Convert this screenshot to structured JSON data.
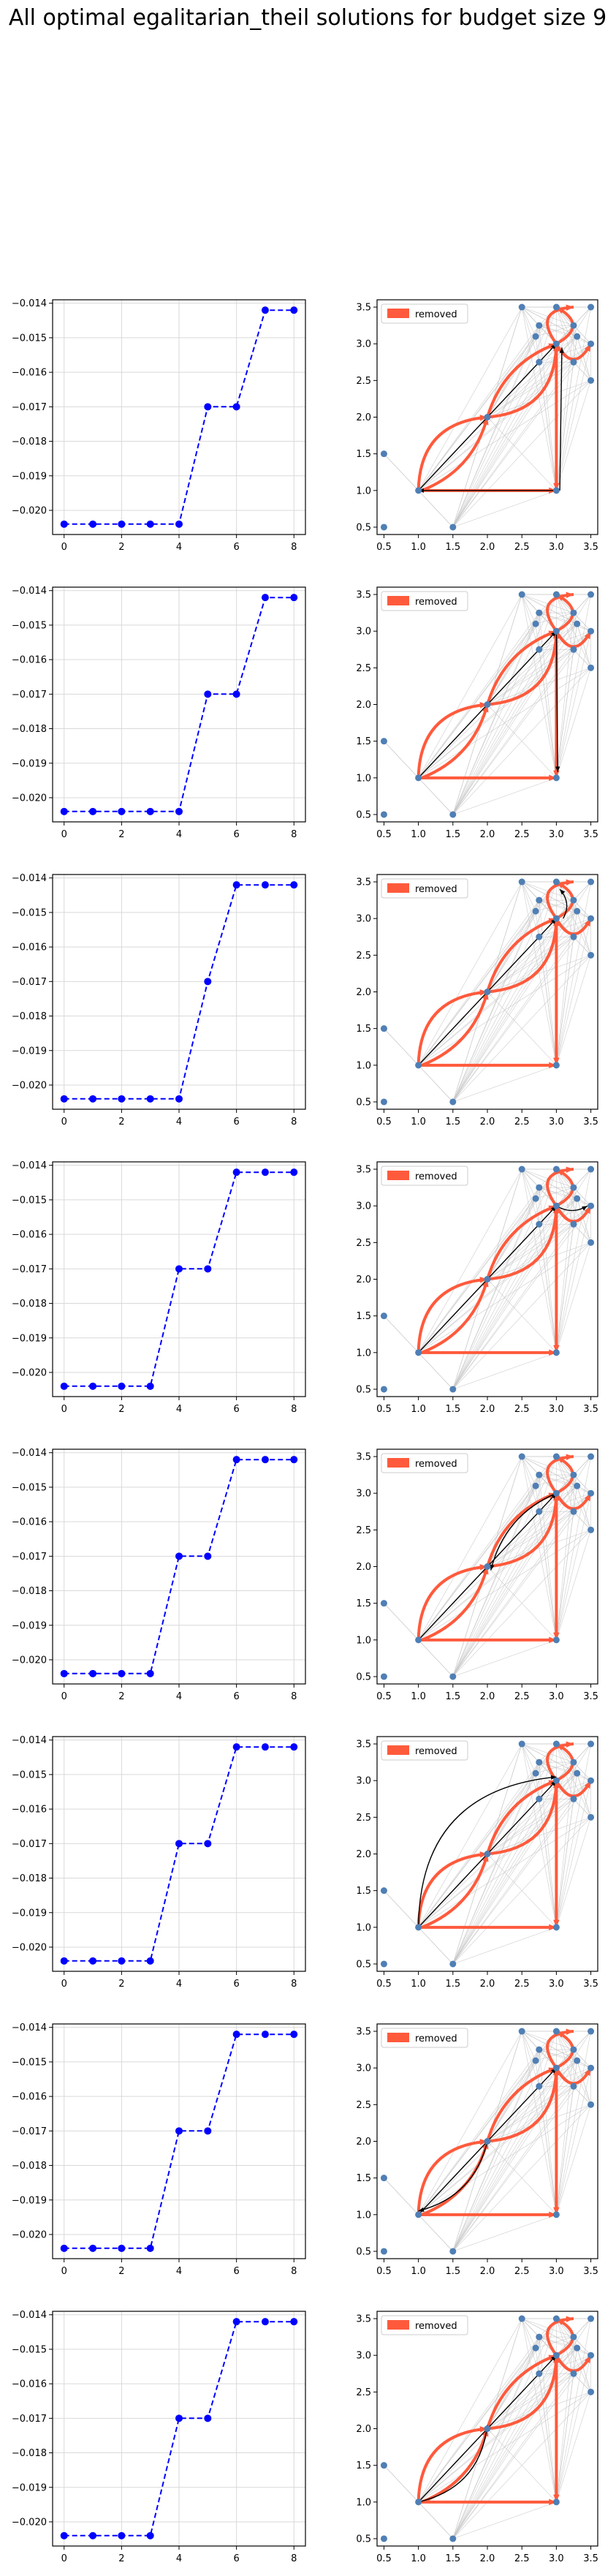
{
  "figure": {
    "title": "All optimal egalitarian_theil solutions for budget size 9"
  },
  "colors": {
    "line_series": "#0000ff",
    "removed_edge": "#ff5a3c",
    "node": "#4f7fb5",
    "background_edge": "#c8c8c8",
    "chosen_edge": "#000000",
    "grid": "#d9d9d9"
  },
  "chart_data": [
    {
      "type": "line",
      "panel": "left",
      "row": 1,
      "x": [
        0,
        1,
        2,
        3,
        4,
        5,
        6,
        7,
        8
      ],
      "values": [
        -0.0204,
        -0.0204,
        -0.0204,
        -0.0204,
        -0.0204,
        -0.017,
        -0.017,
        -0.0142,
        -0.0142
      ],
      "xticks": [
        0,
        2,
        4,
        6,
        8
      ],
      "yticks": [
        -0.02,
        -0.019,
        -0.018,
        -0.017,
        -0.016,
        -0.015,
        -0.014
      ],
      "xlim": [
        -0.4,
        8.4
      ],
      "ylim": [
        -0.0207,
        -0.0139
      ],
      "grid": true,
      "style": "dashed, circle markers"
    },
    {
      "type": "network",
      "panel": "right",
      "row": 1,
      "legend": {
        "label": "removed",
        "loc": "upper left"
      },
      "xticks": [
        0.5,
        1.0,
        1.5,
        2.0,
        2.5,
        3.0,
        3.5
      ],
      "yticks": [
        0.5,
        1.0,
        1.5,
        2.0,
        2.5,
        3.0,
        3.5
      ],
      "xlim": [
        0.4,
        3.6
      ],
      "ylim": [
        0.4,
        3.6
      ],
      "black_edges": [
        [
          1,
          1,
          3,
          3,
          0.0
        ],
        [
          3.05,
          1.0,
          3.08,
          2.95,
          0.0
        ],
        [
          3.0,
          1.0,
          1.0,
          1.0,
          0.0
        ]
      ]
    },
    {
      "type": "line",
      "panel": "left",
      "row": 2,
      "x": [
        0,
        1,
        2,
        3,
        4,
        5,
        6,
        7,
        8
      ],
      "values": [
        -0.0204,
        -0.0204,
        -0.0204,
        -0.0204,
        -0.0204,
        -0.017,
        -0.017,
        -0.0142,
        -0.0142
      ],
      "xticks": [
        0,
        2,
        4,
        6,
        8
      ],
      "yticks": [
        -0.02,
        -0.019,
        -0.018,
        -0.017,
        -0.016,
        -0.015,
        -0.014
      ],
      "xlim": [
        -0.4,
        8.4
      ],
      "ylim": [
        -0.0207,
        -0.0139
      ],
      "grid": true,
      "style": "dashed, circle markers"
    },
    {
      "type": "network",
      "panel": "right",
      "row": 2,
      "legend": {
        "label": "removed",
        "loc": "upper left"
      },
      "xticks": [
        0.5,
        1.0,
        1.5,
        2.0,
        2.5,
        3.0,
        3.5
      ],
      "yticks": [
        0.5,
        1.0,
        1.5,
        2.0,
        2.5,
        3.0,
        3.5
      ],
      "xlim": [
        0.4,
        3.6
      ],
      "ylim": [
        0.4,
        3.6
      ],
      "black_edges": [
        [
          1,
          1,
          3,
          3,
          0.0
        ],
        [
          3.0,
          3.0,
          3.02,
          1.08,
          0.0
        ]
      ]
    },
    {
      "type": "line",
      "panel": "left",
      "row": 3,
      "x": [
        0,
        1,
        2,
        3,
        4,
        5,
        6,
        7,
        8
      ],
      "values": [
        -0.0204,
        -0.0204,
        -0.0204,
        -0.0204,
        -0.0204,
        -0.017,
        -0.0142,
        -0.0142,
        -0.0142
      ],
      "xticks": [
        0,
        2,
        4,
        6,
        8
      ],
      "yticks": [
        -0.02,
        -0.019,
        -0.018,
        -0.017,
        -0.016,
        -0.015,
        -0.014
      ],
      "xlim": [
        -0.4,
        8.4
      ],
      "ylim": [
        -0.0207,
        -0.0139
      ],
      "grid": true,
      "style": "dashed, circle markers"
    },
    {
      "type": "network",
      "panel": "right",
      "row": 3,
      "legend": {
        "label": "removed",
        "loc": "upper left"
      },
      "xticks": [
        0.5,
        1.0,
        1.5,
        2.0,
        2.5,
        3.0,
        3.5
      ],
      "yticks": [
        0.5,
        1.0,
        1.5,
        2.0,
        2.5,
        3.0,
        3.5
      ],
      "xlim": [
        0.4,
        3.6
      ],
      "ylim": [
        0.4,
        3.6
      ],
      "black_edges": [
        [
          1,
          1,
          3,
          3,
          0.0
        ],
        [
          3.1,
          3.0,
          3.05,
          3.4,
          0.35
        ]
      ]
    },
    {
      "type": "line",
      "panel": "left",
      "row": 4,
      "x": [
        0,
        1,
        2,
        3,
        4,
        5,
        6,
        7,
        8
      ],
      "values": [
        -0.0204,
        -0.0204,
        -0.0204,
        -0.0204,
        -0.017,
        -0.017,
        -0.0142,
        -0.0142,
        -0.0142
      ],
      "xticks": [
        0,
        2,
        4,
        6,
        8
      ],
      "yticks": [
        -0.02,
        -0.019,
        -0.018,
        -0.017,
        -0.016,
        -0.015,
        -0.014
      ],
      "xlim": [
        -0.4,
        8.4
      ],
      "ylim": [
        -0.0207,
        -0.0139
      ],
      "grid": true,
      "style": "dashed, circle markers"
    },
    {
      "type": "network",
      "panel": "right",
      "row": 4,
      "legend": {
        "label": "removed",
        "loc": "upper left"
      },
      "xticks": [
        0.5,
        1.0,
        1.5,
        2.0,
        2.5,
        3.0,
        3.5
      ],
      "yticks": [
        0.5,
        1.0,
        1.5,
        2.0,
        2.5,
        3.0,
        3.5
      ],
      "xlim": [
        0.4,
        3.6
      ],
      "ylim": [
        0.4,
        3.6
      ],
      "black_edges": [
        [
          1,
          1,
          3,
          3,
          0.0
        ],
        [
          3.0,
          3.0,
          3.45,
          3.0,
          0.3
        ]
      ]
    },
    {
      "type": "line",
      "panel": "left",
      "row": 5,
      "x": [
        0,
        1,
        2,
        3,
        4,
        5,
        6,
        7,
        8
      ],
      "values": [
        -0.0204,
        -0.0204,
        -0.0204,
        -0.0204,
        -0.017,
        -0.017,
        -0.0142,
        -0.0142,
        -0.0142
      ],
      "xticks": [
        0,
        2,
        4,
        6,
        8
      ],
      "yticks": [
        -0.02,
        -0.019,
        -0.018,
        -0.017,
        -0.016,
        -0.015,
        -0.014
      ],
      "xlim": [
        -0.4,
        8.4
      ],
      "ylim": [
        -0.0207,
        -0.0139
      ],
      "grid": true,
      "style": "dashed, circle markers"
    },
    {
      "type": "network",
      "panel": "right",
      "row": 5,
      "legend": {
        "label": "removed",
        "loc": "upper left"
      },
      "xticks": [
        0.5,
        1.0,
        1.5,
        2.0,
        2.5,
        3.0,
        3.5
      ],
      "yticks": [
        0.5,
        1.0,
        1.5,
        2.0,
        2.5,
        3.0,
        3.5
      ],
      "xlim": [
        0.4,
        3.6
      ],
      "ylim": [
        0.4,
        3.6
      ],
      "black_edges": [
        [
          1,
          1,
          3,
          3,
          0.0
        ],
        [
          3.0,
          3.0,
          2.05,
          1.95,
          0.25
        ]
      ]
    },
    {
      "type": "line",
      "panel": "left",
      "row": 6,
      "x": [
        0,
        1,
        2,
        3,
        4,
        5,
        6,
        7,
        8
      ],
      "values": [
        -0.0204,
        -0.0204,
        -0.0204,
        -0.0204,
        -0.017,
        -0.017,
        -0.0142,
        -0.0142,
        -0.0142
      ],
      "xticks": [
        0,
        2,
        4,
        6,
        8
      ],
      "yticks": [
        -0.02,
        -0.019,
        -0.018,
        -0.017,
        -0.016,
        -0.015,
        -0.014
      ],
      "xlim": [
        -0.4,
        8.4
      ],
      "ylim": [
        -0.0207,
        -0.0139
      ],
      "grid": true,
      "style": "dashed, circle markers"
    },
    {
      "type": "network",
      "panel": "right",
      "row": 6,
      "legend": {
        "label": "removed",
        "loc": "upper left"
      },
      "xticks": [
        0.5,
        1.0,
        1.5,
        2.0,
        2.5,
        3.0,
        3.5
      ],
      "yticks": [
        0.5,
        1.0,
        1.5,
        2.0,
        2.5,
        3.0,
        3.5
      ],
      "xlim": [
        0.4,
        3.6
      ],
      "ylim": [
        0.4,
        3.6
      ],
      "black_edges": [
        [
          1,
          1,
          3,
          3,
          0.0
        ],
        [
          1.0,
          1.0,
          3.0,
          3.05,
          -0.45
        ]
      ]
    },
    {
      "type": "line",
      "panel": "left",
      "row": 7,
      "x": [
        0,
        1,
        2,
        3,
        4,
        5,
        6,
        7,
        8
      ],
      "values": [
        -0.0204,
        -0.0204,
        -0.0204,
        -0.0204,
        -0.017,
        -0.017,
        -0.0142,
        -0.0142,
        -0.0142
      ],
      "xticks": [
        0,
        2,
        4,
        6,
        8
      ],
      "yticks": [
        -0.02,
        -0.019,
        -0.018,
        -0.017,
        -0.016,
        -0.015,
        -0.014
      ],
      "xlim": [
        -0.4,
        8.4
      ],
      "ylim": [
        -0.0207,
        -0.0139
      ],
      "grid": true,
      "style": "dashed, circle markers"
    },
    {
      "type": "network",
      "panel": "right",
      "row": 7,
      "legend": {
        "label": "removed",
        "loc": "upper left"
      },
      "xticks": [
        0.5,
        1.0,
        1.5,
        2.0,
        2.5,
        3.0,
        3.5
      ],
      "yticks": [
        0.5,
        1.0,
        1.5,
        2.0,
        2.5,
        3.0,
        3.5
      ],
      "xlim": [
        0.4,
        3.6
      ],
      "ylim": [
        0.4,
        3.6
      ],
      "black_edges": [
        [
          1,
          1,
          3,
          3,
          0.0
        ],
        [
          2.0,
          2.0,
          1.0,
          1.05,
          -0.3
        ]
      ]
    },
    {
      "type": "line",
      "panel": "left",
      "row": 8,
      "x": [
        0,
        1,
        2,
        3,
        4,
        5,
        6,
        7,
        8
      ],
      "values": [
        -0.0204,
        -0.0204,
        -0.0204,
        -0.0204,
        -0.017,
        -0.017,
        -0.0142,
        -0.0142,
        -0.0142
      ],
      "xticks": [
        0,
        2,
        4,
        6,
        8
      ],
      "yticks": [
        -0.02,
        -0.019,
        -0.018,
        -0.017,
        -0.016,
        -0.015,
        -0.014
      ],
      "xlim": [
        -0.4,
        8.4
      ],
      "ylim": [
        -0.0207,
        -0.0139
      ],
      "grid": true,
      "style": "dashed, circle markers"
    },
    {
      "type": "network",
      "panel": "right",
      "row": 8,
      "legend": {
        "label": "removed",
        "loc": "upper left"
      },
      "xticks": [
        0.5,
        1.0,
        1.5,
        2.0,
        2.5,
        3.0,
        3.5
      ],
      "yticks": [
        0.5,
        1.0,
        1.5,
        2.0,
        2.5,
        3.0,
        3.5
      ],
      "xlim": [
        0.4,
        3.6
      ],
      "ylim": [
        0.4,
        3.6
      ],
      "black_edges": [
        [
          1,
          1,
          3,
          3,
          0.0
        ],
        [
          1.0,
          1.0,
          2.0,
          2.05,
          0.35
        ]
      ]
    }
  ],
  "network_common": {
    "nodes": [
      [
        0.5,
        0.5
      ],
      [
        1.0,
        1.0
      ],
      [
        1.5,
        0.5
      ],
      [
        0.5,
        1.5
      ],
      [
        2.0,
        2.0
      ],
      [
        3.0,
        1.0
      ],
      [
        3.0,
        3.0
      ],
      [
        2.5,
        3.5
      ],
      [
        3.0,
        3.5
      ],
      [
        3.5,
        3.5
      ],
      [
        2.75,
        3.25
      ],
      [
        3.25,
        3.25
      ],
      [
        2.7,
        3.1
      ],
      [
        3.3,
        3.1
      ],
      [
        3.5,
        3.0
      ],
      [
        3.5,
        2.5
      ],
      [
        3.25,
        2.75
      ],
      [
        2.75,
        2.75
      ]
    ],
    "removed_edges": [
      [
        1.0,
        1.0,
        2.0,
        2.0,
        -0.45
      ],
      [
        2.0,
        2.0,
        3.0,
        3.0,
        0.45
      ],
      [
        1.05,
        1.0,
        2.0,
        2.0,
        0.25
      ],
      [
        2.0,
        2.0,
        3.0,
        3.0,
        -0.25
      ],
      [
        1.0,
        1.0,
        3.0,
        1.0,
        0.0
      ],
      [
        3.0,
        3.0,
        3.0,
        1.0,
        0.0
      ],
      [
        3.0,
        3.0,
        3.25,
        3.5,
        -0.9
      ],
      [
        3.0,
        3.0,
        3.5,
        3.0,
        0.9
      ],
      [
        3.0,
        3.0,
        3.0,
        3.5,
        0.9
      ]
    ]
  }
}
